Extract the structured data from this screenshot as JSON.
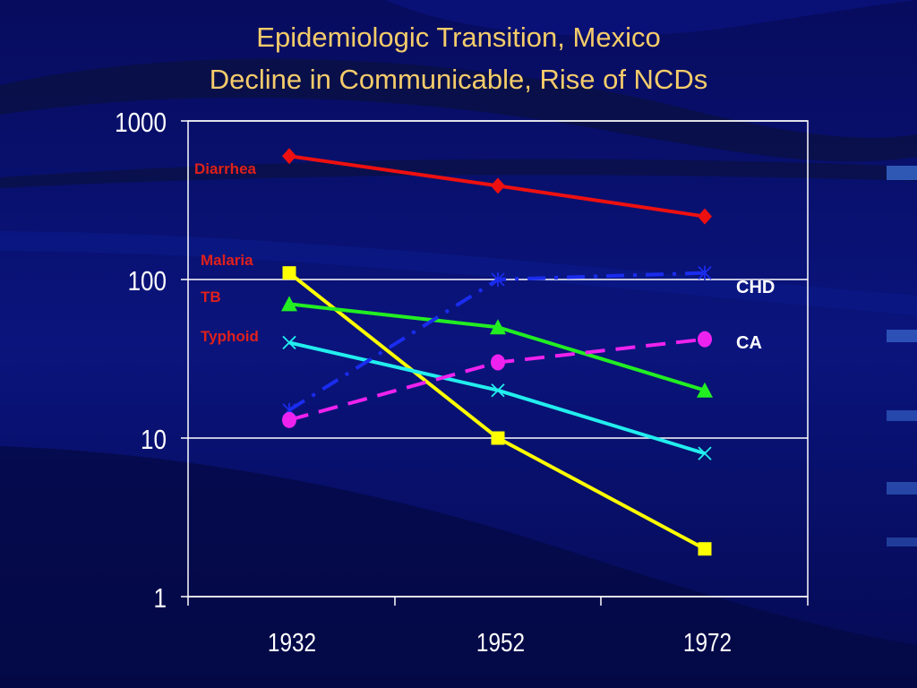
{
  "slide": {
    "title_line_1": "Epidemiologic Transition, Mexico",
    "title_line_2": "Decline in Communicable, Rise of NCDs"
  },
  "colors": {
    "background": "#060c66",
    "title": "#f5cc6a",
    "plot_frame": "#ffffff",
    "disease_label_red": "#e0201c",
    "ncd_label_white": "#ffffff"
  },
  "chart_data": {
    "type": "line",
    "title": "",
    "xlabel": "",
    "ylabel": "",
    "y_scale": "log",
    "ylim": [
      1,
      1000
    ],
    "y_ticks": [
      {
        "value": 1,
        "label": "1"
      },
      {
        "value": 10,
        "label": "10"
      },
      {
        "value": 100,
        "label": "100"
      },
      {
        "value": 1000,
        "label": "1000"
      }
    ],
    "categories": [
      "1932",
      "1952",
      "1972"
    ],
    "grid": "horizontal",
    "series": [
      {
        "name": "Diarrhea",
        "values": [
          600,
          390,
          250
        ],
        "color": "#ee1010",
        "marker": "diamond",
        "dash": "solid",
        "label_color": "#e0201c"
      },
      {
        "name": "Malaria",
        "values": [
          110,
          10,
          2
        ],
        "color": "#ffff00",
        "marker": "square",
        "dash": "solid",
        "label_color": "#e0201c"
      },
      {
        "name": "TB",
        "values": [
          70,
          50,
          20
        ],
        "color": "#22ee22",
        "marker": "triangle",
        "dash": "solid",
        "label_color": "#e0201c"
      },
      {
        "name": "Typhoid",
        "values": [
          40,
          20,
          8
        ],
        "color": "#22eeee",
        "marker": "x",
        "dash": "solid",
        "label_color": "#e0201c"
      },
      {
        "name": "CHD",
        "values": [
          15,
          100,
          110
        ],
        "color": "#1a2cee",
        "marker": "xbar",
        "dash": "dashdot",
        "label_color": "#ffffff"
      },
      {
        "name": "CA",
        "values": [
          13,
          30,
          42
        ],
        "color": "#ee22ee",
        "marker": "circle",
        "dash": "dashed",
        "label_color": "#ffffff"
      }
    ]
  }
}
